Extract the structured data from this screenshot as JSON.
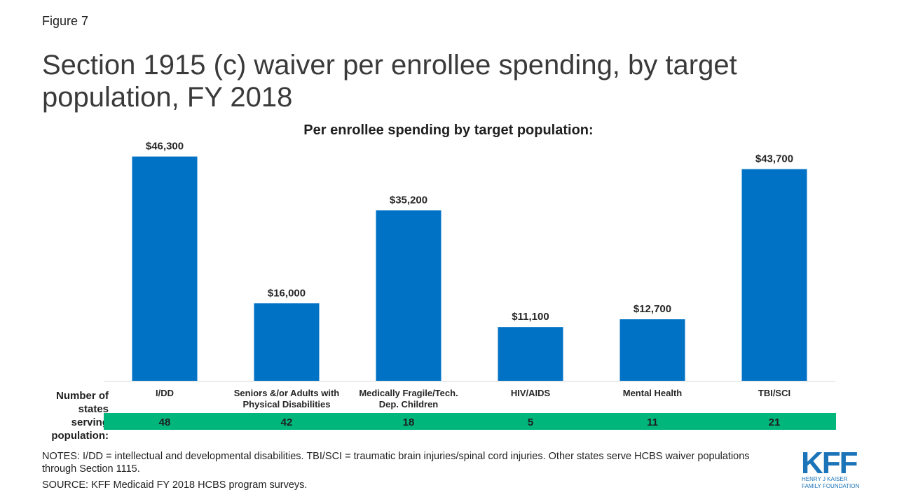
{
  "figure_label": "Figure 7",
  "title": "Section 1915 (c) waiver per enrollee spending, by target population, FY 2018",
  "chart_data": {
    "type": "bar",
    "title": "Per enrollee spending by target population:",
    "categories": [
      [
        "I/DD"
      ],
      [
        "Seniors &/or Adults with",
        "Physical Disabilities"
      ],
      [
        "Medically Fragile/Tech.",
        "Dep. Children"
      ],
      [
        "HIV/AIDS"
      ],
      [
        "Mental Health"
      ],
      [
        "TBI/SCI"
      ]
    ],
    "values": [
      46300,
      16000,
      35200,
      11100,
      12700,
      43700
    ],
    "data_labels": [
      "$46,300",
      "$16,000",
      "$35,200",
      "$11,100",
      "$12,700",
      "$43,700"
    ],
    "ylim": [
      0,
      50000
    ],
    "bar_color": "#0072c6",
    "states_label": "Number of states serving population:",
    "states_counts": [
      "48",
      "42",
      "18",
      "5",
      "11",
      "21"
    ],
    "states_band_color": "#00b67a",
    "grid": false,
    "legend": "none"
  },
  "notes": "NOTES:  I/DD = intellectual and developmental disabilities. TBI/SCI = traumatic brain injuries/spinal cord injuries. Other states serve HCBS waiver populations through Section 1115.",
  "source": "SOURCE: KFF Medicaid FY 2018 HCBS program surveys.",
  "logo": {
    "letters": "KFF",
    "line1": "HENRY J KAISER",
    "line2": "FAMILY FOUNDATION",
    "color": "#1b73b8"
  }
}
